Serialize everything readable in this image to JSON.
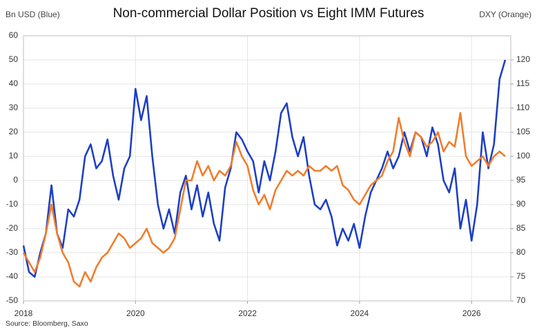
{
  "chart_data": {
    "type": "line",
    "title": "Non-commercial Dollar Position vs Eight IMM Futures",
    "y_label": "Bn USD (Blue)",
    "y2_label": "DXY (Orange)",
    "source": "Source: Bloomberg, Saxo",
    "x": [
      2018.0,
      2018.1,
      2018.2,
      2018.3,
      2018.4,
      2018.5,
      2018.6,
      2018.7,
      2018.8,
      2018.9,
      2019.0,
      2019.1,
      2019.2,
      2019.3,
      2019.4,
      2019.5,
      2019.6,
      2019.7,
      2019.8,
      2019.9,
      2020.0,
      2020.1,
      2020.2,
      2020.3,
      2020.4,
      2020.5,
      2020.6,
      2020.7,
      2020.8,
      2020.9,
      2021.0,
      2021.1,
      2021.2,
      2021.3,
      2021.4,
      2021.5,
      2021.6,
      2021.7,
      2021.8,
      2021.9,
      2022.0,
      2022.1,
      2022.2,
      2022.3,
      2022.4,
      2022.5,
      2022.6,
      2022.7,
      2022.8,
      2022.9,
      2023.0,
      2023.1,
      2023.2,
      2023.3,
      2023.4,
      2023.5,
      2023.6,
      2023.7,
      2023.8,
      2023.9,
      2024.0,
      2024.1,
      2024.2,
      2024.3,
      2024.4,
      2024.5,
      2024.6,
      2024.7,
      2024.8,
      2024.9,
      2025.0,
      2025.1,
      2025.2,
      2025.3,
      2025.4,
      2025.5,
      2025.6,
      2025.7,
      2025.8,
      2025.9,
      2026.0,
      2026.1,
      2026.2,
      2026.3,
      2026.4,
      2026.5,
      2026.6
    ],
    "series": [
      {
        "name": "Non-commercial Dollar Position",
        "color": "#1d3fc4",
        "axis": "y",
        "values": [
          -27,
          -38,
          -40,
          -30,
          -22,
          -2,
          -22,
          -28,
          -12,
          -15,
          -8,
          10,
          15,
          5,
          8,
          17,
          2,
          -8,
          5,
          10,
          38,
          25,
          35,
          10,
          -10,
          -20,
          -12,
          -22,
          -5,
          2,
          -12,
          -2,
          -15,
          -5,
          -18,
          -25,
          -3,
          5,
          20,
          17,
          12,
          8,
          -5,
          8,
          0,
          12,
          28,
          32,
          18,
          10,
          18,
          2,
          -10,
          -12,
          -8,
          -15,
          -27,
          -20,
          -25,
          -18,
          -28,
          -15,
          -5,
          0,
          5,
          12,
          5,
          10,
          20,
          12,
          20,
          18,
          10,
          22,
          15,
          0,
          -5,
          5,
          -20,
          -8,
          -25,
          -10,
          20,
          5,
          15,
          42,
          50
        ]
      },
      {
        "name": "DXY",
        "color": "#f07d2c",
        "axis": "y2",
        "values": [
          80,
          78,
          76,
          79,
          84,
          90,
          84,
          80,
          78,
          74,
          73,
          76,
          74,
          77,
          79,
          80,
          82,
          84,
          83,
          81,
          82,
          83,
          85,
          82,
          81,
          80,
          81,
          83,
          89,
          95,
          95,
          99,
          96,
          98,
          95,
          97,
          96,
          98,
          103,
          100,
          98,
          93,
          90,
          92,
          89,
          93,
          95,
          97,
          96,
          97,
          96,
          98,
          97,
          97,
          98,
          97,
          98,
          94,
          93,
          91,
          90,
          92,
          94,
          95,
          96,
          99,
          101,
          108,
          103,
          100,
          105,
          104,
          102,
          103,
          105,
          101,
          103,
          102,
          109,
          100,
          98,
          99,
          100,
          98,
          100,
          101,
          100
        ]
      }
    ],
    "xlim": [
      2018.0,
      2026.7
    ],
    "xticks": [
      2018,
      2020,
      2022,
      2024,
      2026
    ],
    "ylim": [
      -50,
      60
    ],
    "yticks": [
      -50,
      -40,
      -30,
      -20,
      -10,
      0,
      10,
      20,
      30,
      40,
      50,
      60
    ],
    "y2lim": [
      70,
      125
    ],
    "y2ticks": [
      70,
      75,
      80,
      85,
      90,
      95,
      100,
      105,
      110,
      115,
      120
    ],
    "grid": true
  }
}
